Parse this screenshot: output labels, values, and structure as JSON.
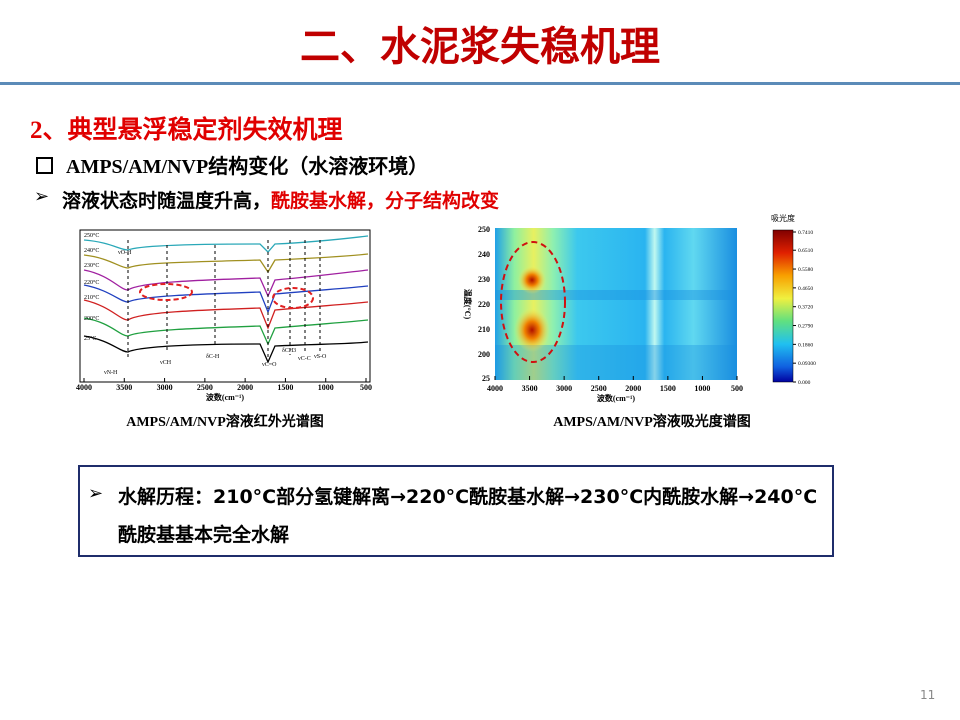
{
  "header": {
    "title": "二、水泥浆失稳机理"
  },
  "section": {
    "heading": "2、典型悬浮稳定剂失效机理",
    "subheading": "AMPS/AM/NVP结构变化（水溶液环境）",
    "bullet_plain": "溶液状态时随温度升高，",
    "bullet_red": "酰胺基水解，分子结构改变"
  },
  "figures": [
    {
      "caption": "AMPS/AM/NVP溶液红外光谱图",
      "xlabel": "波数(cm⁻¹)",
      "xlim": [
        4000,
        500
      ],
      "xticks": [
        4000,
        3500,
        3000,
        2500,
        2000,
        1500,
        1000,
        500
      ],
      "curve_labels": [
        "250°C",
        "240°C",
        "230°C",
        "220°C",
        "210°C",
        "200°C",
        "25°C"
      ],
      "peak_labels": [
        "νO-H",
        "νCH",
        "δC-H",
        "νC=O",
        "δCH3",
        "νC-C",
        "νS-O",
        "νN-H"
      ]
    },
    {
      "caption": "AMPS/AM/NVP溶液吸光度谱图",
      "xlabel": "波数(cm⁻¹)",
      "ylabel": "温度(°C)",
      "xlim": [
        4000,
        500
      ],
      "xticks": [
        4000,
        3500,
        3000,
        2500,
        2000,
        1500,
        1000,
        500
      ],
      "yticks": [
        25,
        200,
        210,
        220,
        230,
        240,
        250
      ],
      "colorbar_title": "吸光度",
      "colorbar_lim": [
        0,
        0.741
      ],
      "colorbar_ticks": [
        {
          "value": 0.741,
          "label": "0.7410"
        },
        {
          "value": 0.651,
          "label": "0.6510"
        },
        {
          "value": 0.558,
          "label": "0.5580"
        },
        {
          "value": 0.465,
          "label": "0.4650"
        },
        {
          "value": 0.372,
          "label": "0.3720"
        },
        {
          "value": 0.279,
          "label": "0.2790"
        },
        {
          "value": 0.186,
          "label": "0.1860"
        },
        {
          "value": 0.093,
          "label": "0.09300"
        },
        {
          "value": 0,
          "label": "0.000"
        }
      ]
    }
  ],
  "box": {
    "text": "水解历程：210°C部分氢键解离→220°C酰胺基水解→230°C内酰胺水解→240°C酰胺基基本完全水解"
  },
  "page_number": "11"
}
